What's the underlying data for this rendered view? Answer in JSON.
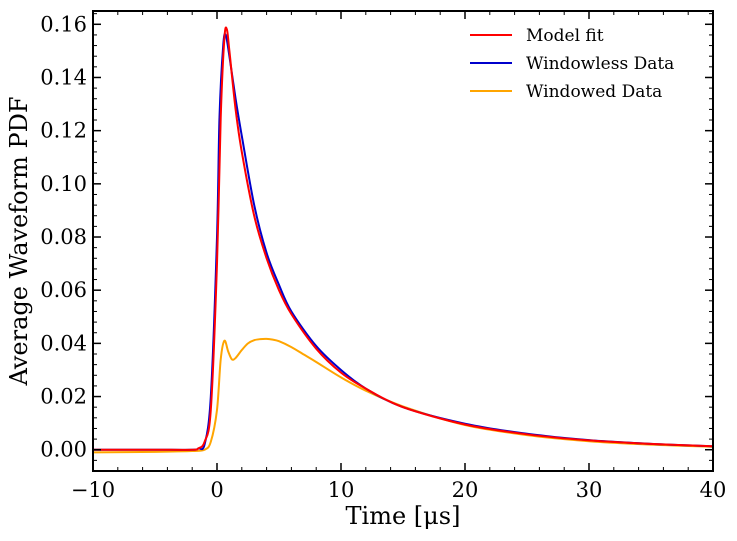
{
  "chart_data": {
    "type": "line",
    "title": "",
    "xlabel": "Time [μs]",
    "ylabel": "Average Waveform PDF",
    "xlim": [
      -10,
      40
    ],
    "ylim": [
      -0.008,
      0.165
    ],
    "x_ticks": [
      -10,
      0,
      10,
      20,
      30,
      40
    ],
    "x_tick_labels": [
      "−10",
      "0",
      "10",
      "20",
      "30",
      "40"
    ],
    "y_ticks": [
      0.0,
      0.02,
      0.04,
      0.06,
      0.08,
      0.1,
      0.12,
      0.14,
      0.16
    ],
    "y_tick_labels": [
      "0.00",
      "0.02",
      "0.04",
      "0.06",
      "0.08",
      "0.10",
      "0.12",
      "0.14",
      "0.16"
    ],
    "legend_position": "top-right",
    "grid": false,
    "series": [
      {
        "name": "Model fit",
        "color": "#ff0000",
        "x": [
          -10,
          -5,
          -2,
          -1.5,
          -1,
          -0.5,
          0,
          0.3,
          0.6,
          0.8,
          1,
          1.5,
          2,
          3,
          4,
          5,
          6,
          8,
          10,
          12,
          15,
          20,
          25,
          30,
          35,
          40
        ],
        "y": [
          0.0,
          0.0,
          0.0,
          0.0005,
          0.003,
          0.015,
          0.07,
          0.125,
          0.155,
          0.158,
          0.15,
          0.128,
          0.112,
          0.088,
          0.072,
          0.06,
          0.051,
          0.038,
          0.029,
          0.023,
          0.016,
          0.0095,
          0.0058,
          0.0035,
          0.0022,
          0.0013
        ]
      },
      {
        "name": "Windowless Data",
        "color": "#0000cc",
        "x": [
          -10,
          -5,
          -2,
          -1.5,
          -1,
          -0.5,
          0,
          0.2,
          0.5,
          0.7,
          1,
          1.5,
          2,
          3,
          4,
          5,
          6,
          8,
          10,
          12,
          15,
          20,
          25,
          30,
          35,
          40
        ],
        "y": [
          0.0,
          0.0,
          0.0,
          0.0005,
          0.002,
          0.02,
          0.08,
          0.125,
          0.152,
          0.156,
          0.148,
          0.132,
          0.118,
          0.092,
          0.074,
          0.062,
          0.052,
          0.039,
          0.03,
          0.023,
          0.016,
          0.0098,
          0.006,
          0.0036,
          0.0022,
          0.0013
        ]
      },
      {
        "name": "Windowed Data",
        "color": "#ffa500",
        "x": [
          -10,
          -5,
          -2,
          -1,
          -0.5,
          0,
          0.3,
          0.6,
          0.9,
          1.2,
          1.5,
          2,
          2.5,
          3,
          3.5,
          4,
          4.5,
          5,
          6,
          7,
          8,
          10,
          12,
          15,
          20,
          25,
          30,
          35,
          40
        ],
        "y": [
          -0.001,
          -0.0008,
          -0.0005,
          0.0,
          0.003,
          0.015,
          0.034,
          0.041,
          0.037,
          0.034,
          0.0345,
          0.0375,
          0.04,
          0.0412,
          0.0416,
          0.0417,
          0.0414,
          0.0408,
          0.0386,
          0.0358,
          0.033,
          0.0272,
          0.0222,
          0.0163,
          0.0093,
          0.0055,
          0.0032,
          0.0019,
          0.0011
        ]
      }
    ]
  }
}
